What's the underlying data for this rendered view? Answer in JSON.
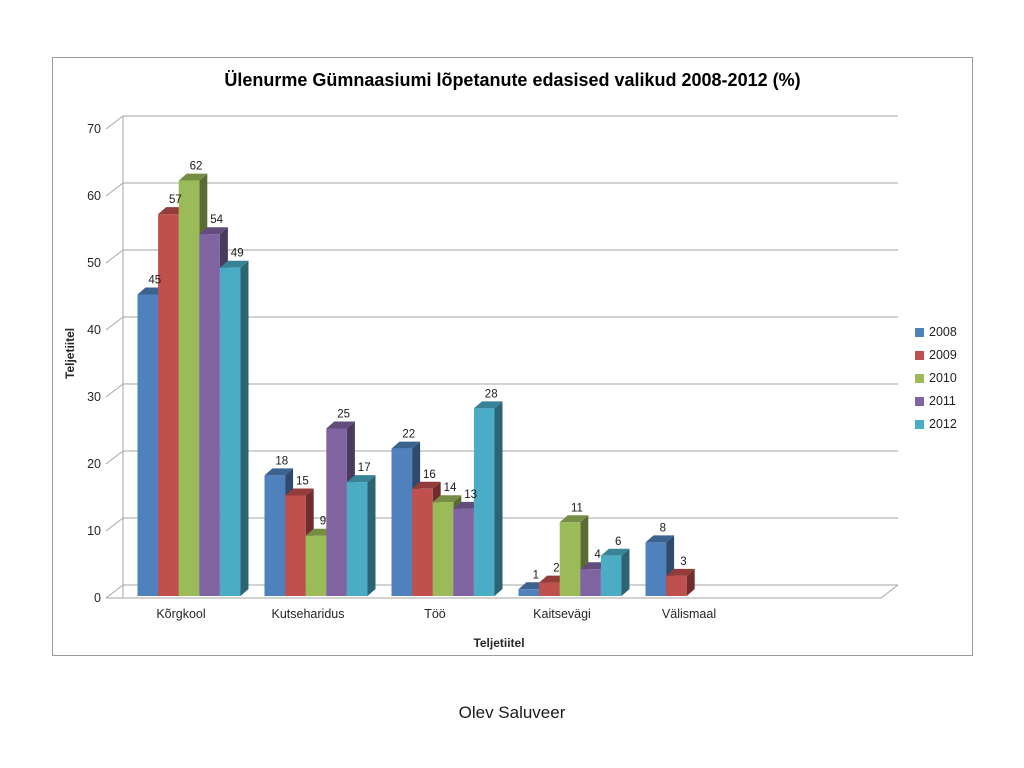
{
  "footer": {
    "author": "Olev Saluveer"
  },
  "chart_data": {
    "type": "bar",
    "style": "3d-clustered-column",
    "title": "Ülenurme Gümnaasiumi lõpetanute edasised valikud 2008-2012 (%)",
    "xlabel": "Teljetiitel",
    "ylabel": "Teljetiitel",
    "ylim": [
      0,
      70
    ],
    "ytick_step": 10,
    "grid": true,
    "legend_position": "right",
    "categories": [
      "Kõrgkool",
      "Kutseharidus",
      "Töö",
      "Kaitsevägi",
      "Välismaal"
    ],
    "series": [
      {
        "name": "2008",
        "color": "#4F81BD",
        "values": [
          45,
          18,
          22,
          1,
          8
        ]
      },
      {
        "name": "2009",
        "color": "#C0504D",
        "values": [
          57,
          15,
          16,
          2,
          3
        ]
      },
      {
        "name": "2010",
        "color": "#9BBB59",
        "values": [
          62,
          9,
          14,
          11,
          0
        ]
      },
      {
        "name": "2011",
        "color": "#8064A2",
        "values": [
          54,
          25,
          13,
          4,
          0
        ]
      },
      {
        "name": "2012",
        "color": "#4BACC6",
        "values": [
          49,
          17,
          28,
          6,
          0
        ]
      }
    ],
    "axis_color": "#A6A6A6",
    "tick_label_color": "#262626",
    "data_label_color": "#1a1a1a"
  }
}
